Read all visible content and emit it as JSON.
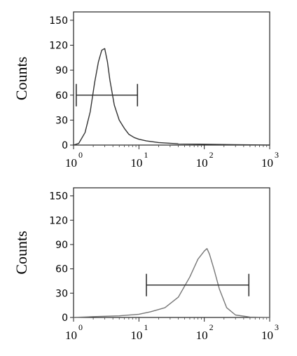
{
  "chart_data": [
    {
      "type": "line",
      "ylabel": "Counts",
      "ylim": [
        0,
        160
      ],
      "yticks": [
        "0",
        "30",
        "60",
        "90",
        "120",
        "150"
      ],
      "x_scale": "log",
      "xlim": [
        1,
        1000
      ],
      "xtick_base": "10",
      "xtick_exponents": [
        "0",
        "1",
        "2",
        "3"
      ],
      "series": [
        {
          "x": [
            1,
            1.2,
            1.5,
            1.8,
            2.1,
            2.4,
            2.7,
            3.0,
            3.3,
            3.6,
            4.2,
            5,
            6,
            7,
            8.5,
            10,
            13,
            20,
            40,
            100,
            300,
            1000
          ],
          "values": [
            0,
            2,
            15,
            40,
            75,
            100,
            114,
            116,
            100,
            78,
            48,
            30,
            20,
            13,
            9,
            7,
            5,
            3,
            1.5,
            1,
            0.5,
            0
          ]
        }
      ],
      "gate": {
        "x_start": 1.1,
        "x_end": 9.5,
        "y": 60
      },
      "grid": false,
      "legend": "none"
    },
    {
      "type": "line",
      "ylabel": "Counts",
      "ylim": [
        0,
        160
      ],
      "yticks": [
        "0",
        "30",
        "60",
        "90",
        "120",
        "150"
      ],
      "x_scale": "log",
      "xlim": [
        1,
        1000
      ],
      "xtick_base": "10",
      "xtick_exponents": [
        "0",
        "1",
        "2",
        "3"
      ],
      "series": [
        {
          "x": [
            1,
            2,
            5,
            10,
            15,
            25,
            40,
            60,
            80,
            100,
            110,
            120,
            140,
            170,
            220,
            300,
            500,
            1000
          ],
          "values": [
            0,
            1,
            2,
            4,
            7,
            12,
            25,
            50,
            72,
            82,
            85,
            78,
            60,
            35,
            12,
            3,
            0.5,
            0
          ]
        }
      ],
      "gate": {
        "x_start": 13,
        "x_end": 480,
        "y": 40
      },
      "grid": false,
      "legend": "none"
    }
  ]
}
